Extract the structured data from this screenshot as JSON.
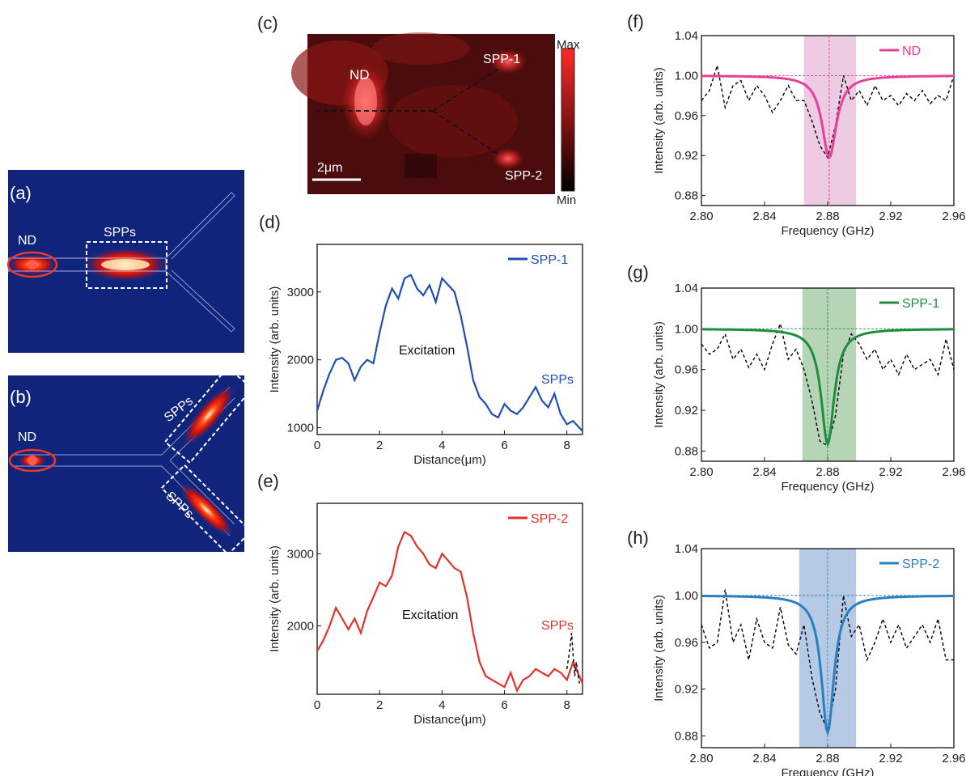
{
  "colors": {
    "nd": "#e8409a",
    "spp1": "#1e8e3e",
    "spp2": "#2a7fc0",
    "blue_line": "#1f4fb0",
    "red_line": "#e2322a",
    "ref": "#000000"
  },
  "panels": {
    "a": {
      "label": "(a)",
      "nd": "ND",
      "spps": "SPPs"
    },
    "b": {
      "label": "(b)",
      "nd": "ND",
      "spps_top": "SPPs",
      "spps_bottom": "SPPs"
    },
    "c": {
      "label": "(c)",
      "nd": "ND",
      "spp1": "SPP-1",
      "spp2": "SPP-2",
      "scale": "2μm",
      "cbar_max": "Max",
      "cbar_min": "Min"
    },
    "d": {
      "label": "(d)",
      "legend": "SPP-1",
      "excitation": "Excitation",
      "spps": "SPPs"
    },
    "e": {
      "label": "(e)",
      "legend": "SPP-2",
      "excitation": "Excitation",
      "spps": "SPPs"
    },
    "f": {
      "label": "(f)",
      "legend": "ND"
    },
    "g": {
      "label": "(g)",
      "legend": "SPP-1"
    },
    "h": {
      "label": "(h)",
      "legend": "SPP-2"
    }
  },
  "chart_data": [
    {
      "id": "d",
      "type": "line",
      "xlabel": "Distance(μm)",
      "ylabel": "Intensity (arb. units)",
      "xlim": [
        0,
        8.5
      ],
      "ylim": [
        900,
        3700
      ],
      "xticks": [
        0,
        2,
        4,
        6,
        8
      ],
      "yticks": [
        1000,
        2000,
        3000
      ],
      "series": [
        {
          "name": "SPP-1",
          "x": [
            0,
            0.2,
            0.4,
            0.6,
            0.8,
            1.0,
            1.2,
            1.4,
            1.6,
            1.8,
            2.0,
            2.2,
            2.4,
            2.6,
            2.8,
            3.0,
            3.2,
            3.4,
            3.6,
            3.8,
            4.0,
            4.2,
            4.4,
            4.6,
            4.8,
            5.0,
            5.2,
            5.4,
            5.6,
            5.8,
            6.0,
            6.2,
            6.4,
            6.6,
            6.8,
            7.0,
            7.2,
            7.4,
            7.6,
            7.8,
            8.0,
            8.2,
            8.4,
            8.5
          ],
          "y": [
            1250,
            1550,
            1800,
            2000,
            2030,
            1950,
            1700,
            1900,
            2000,
            1950,
            2400,
            2800,
            3050,
            2900,
            3200,
            3250,
            3050,
            2950,
            3100,
            2850,
            3200,
            3100,
            3000,
            2650,
            2200,
            1700,
            1450,
            1350,
            1200,
            1150,
            1350,
            1250,
            1200,
            1300,
            1450,
            1600,
            1400,
            1300,
            1500,
            1200,
            1050,
            1100,
            1000,
            950
          ]
        }
      ]
    },
    {
      "id": "e",
      "type": "line",
      "xlabel": "Distance(μm)",
      "ylabel": "Intensity (arb. units)",
      "xlim": [
        0,
        8.5
      ],
      "ylim": [
        1050,
        3700
      ],
      "xticks": [
        0,
        2,
        4,
        6,
        8
      ],
      "yticks": [
        2000,
        3000
      ],
      "series": [
        {
          "name": "SPP-2",
          "x": [
            0,
            0.2,
            0.4,
            0.6,
            0.8,
            1.0,
            1.2,
            1.4,
            1.6,
            1.8,
            2.0,
            2.2,
            2.4,
            2.6,
            2.8,
            3.0,
            3.2,
            3.4,
            3.6,
            3.8,
            4.0,
            4.2,
            4.4,
            4.6,
            4.8,
            5.0,
            5.2,
            5.4,
            5.6,
            5.8,
            6.0,
            6.2,
            6.4,
            6.6,
            6.8,
            7.0,
            7.2,
            7.4,
            7.6,
            7.8,
            8.0,
            8.2,
            8.4,
            8.5
          ],
          "y": [
            1650,
            1800,
            2000,
            2250,
            2100,
            1950,
            2100,
            1900,
            2200,
            2400,
            2600,
            2550,
            2700,
            3100,
            3300,
            3250,
            3100,
            3000,
            2850,
            2800,
            3000,
            2900,
            2800,
            2750,
            2400,
            1900,
            1500,
            1300,
            1250,
            1200,
            1150,
            1350,
            1100,
            1250,
            1300,
            1400,
            1350,
            1300,
            1400,
            1350,
            1250,
            1500,
            1300,
            1200
          ]
        },
        {
          "name": "",
          "x": [
            8.0,
            8.1,
            8.15,
            8.2,
            8.25,
            8.3,
            8.4
          ],
          "y": [
            1400,
            1700,
            1900,
            1600,
            1300,
            1500,
            1200
          ]
        }
      ]
    },
    {
      "id": "f",
      "type": "line",
      "xlabel": "Frequency (GHz)",
      "ylabel": "Intensity (arb. units)",
      "xlim": [
        2.8,
        2.96
      ],
      "ylim": [
        0.87,
        1.04
      ],
      "xticks": [
        2.8,
        2.84,
        2.88,
        2.92,
        2.96
      ],
      "xtick_labels": [
        "2.80",
        "2.84",
        "2.88",
        "2.92",
        "2.96"
      ],
      "yticks": [
        0.88,
        0.92,
        0.96,
        1.0,
        1.04
      ],
      "ytick_labels": [
        "0.88",
        "0.92",
        "0.96",
        "1.00",
        "1.04"
      ],
      "band": [
        2.865,
        2.898
      ],
      "guide_x": 2.881,
      "guide_y": 1.0,
      "fit": {
        "center": 2.881,
        "depth": 0.082,
        "hwhm": 0.0055,
        "baseline": 1.0
      },
      "series": [
        {
          "name": "",
          "x": [
            2.8,
            2.805,
            2.81,
            2.815,
            2.82,
            2.825,
            2.83,
            2.835,
            2.84,
            2.845,
            2.85,
            2.855,
            2.86,
            2.865,
            2.87,
            2.875,
            2.88,
            2.885,
            2.89,
            2.895,
            2.9,
            2.905,
            2.91,
            2.915,
            2.92,
            2.925,
            2.93,
            2.935,
            2.94,
            2.945,
            2.95,
            2.955,
            2.96
          ],
          "y": [
            0.975,
            0.985,
            1.01,
            0.968,
            0.99,
            0.995,
            0.975,
            0.99,
            0.98,
            0.963,
            0.975,
            0.99,
            0.975,
            0.975,
            0.955,
            0.93,
            0.918,
            0.95,
            1.0,
            0.975,
            0.985,
            0.97,
            0.99,
            0.975,
            0.98,
            0.97,
            0.982,
            0.975,
            0.985,
            0.972,
            0.98,
            0.975,
            1.0
          ]
        }
      ]
    },
    {
      "id": "g",
      "type": "line",
      "xlabel": "Frequency (GHz)",
      "ylabel": "Intensity (arb. units)",
      "xlim": [
        2.8,
        2.96
      ],
      "ylim": [
        0.87,
        1.04
      ],
      "xticks": [
        2.8,
        2.84,
        2.88,
        2.92,
        2.96
      ],
      "xtick_labels": [
        "2.80",
        "2.84",
        "2.88",
        "2.92",
        "2.96"
      ],
      "yticks": [
        0.88,
        0.92,
        0.96,
        1.0,
        1.04
      ],
      "ytick_labels": [
        "0.88",
        "0.92",
        "0.96",
        "1.00",
        "1.04"
      ],
      "band": [
        2.864,
        2.898
      ],
      "guide_x": 2.88,
      "guide_y": 1.0,
      "fit": {
        "center": 2.88,
        "depth": 0.113,
        "hwhm": 0.005,
        "baseline": 1.0
      },
      "series": [
        {
          "name": "",
          "x": [
            2.8,
            2.805,
            2.81,
            2.815,
            2.82,
            2.825,
            2.83,
            2.835,
            2.84,
            2.845,
            2.85,
            2.855,
            2.86,
            2.865,
            2.87,
            2.875,
            2.88,
            2.885,
            2.89,
            2.895,
            2.9,
            2.905,
            2.91,
            2.915,
            2.92,
            2.925,
            2.93,
            2.935,
            2.94,
            2.945,
            2.95,
            2.955,
            2.96
          ],
          "y": [
            0.985,
            0.975,
            0.98,
            0.995,
            0.97,
            0.98,
            0.962,
            0.975,
            0.96,
            0.985,
            1.005,
            0.97,
            0.98,
            0.96,
            0.93,
            0.89,
            0.885,
            0.915,
            0.975,
            0.995,
            0.985,
            0.97,
            0.98,
            0.96,
            0.97,
            0.955,
            0.975,
            0.96,
            0.965,
            0.97,
            0.955,
            0.99,
            0.96
          ]
        }
      ]
    },
    {
      "id": "h",
      "type": "line",
      "xlabel": "Frequency (GHz)",
      "ylabel": "Intensity (arb. units)",
      "xlim": [
        2.8,
        2.96
      ],
      "ylim": [
        0.87,
        1.04
      ],
      "xticks": [
        2.8,
        2.84,
        2.88,
        2.92,
        2.96
      ],
      "xtick_labels": [
        "2.80",
        "2.84",
        "2.88",
        "2.92",
        "2.96"
      ],
      "yticks": [
        0.88,
        0.92,
        0.96,
        1.0,
        1.04
      ],
      "ytick_labels": [
        "0.88",
        "0.92",
        "0.96",
        "1.00",
        "1.04"
      ],
      "band": [
        2.862,
        2.898
      ],
      "guide_x": 2.88,
      "guide_y": 1.0,
      "fit": {
        "center": 2.88,
        "depth": 0.117,
        "hwhm": 0.0048,
        "baseline": 1.0
      },
      "series": [
        {
          "name": "",
          "x": [
            2.8,
            2.805,
            2.81,
            2.815,
            2.82,
            2.825,
            2.83,
            2.835,
            2.84,
            2.845,
            2.85,
            2.855,
            2.86,
            2.865,
            2.87,
            2.875,
            2.88,
            2.885,
            2.89,
            2.895,
            2.9,
            2.905,
            2.91,
            2.915,
            2.92,
            2.925,
            2.93,
            2.935,
            2.94,
            2.945,
            2.95,
            2.955,
            2.96
          ],
          "y": [
            0.975,
            0.955,
            0.96,
            1.005,
            0.96,
            0.975,
            0.945,
            0.98,
            0.96,
            0.955,
            0.99,
            0.958,
            0.95,
            0.975,
            0.93,
            0.9,
            0.885,
            0.92,
            1.0,
            0.965,
            0.975,
            0.945,
            0.96,
            0.98,
            0.96,
            0.975,
            0.955,
            0.965,
            0.975,
            0.96,
            0.98,
            0.945,
            0.945
          ]
        }
      ]
    }
  ]
}
